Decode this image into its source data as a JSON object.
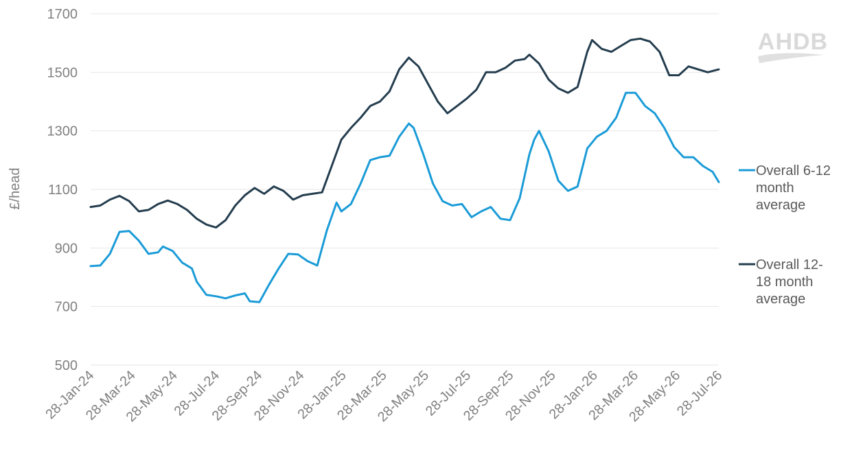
{
  "logo": {
    "text": "AHDB"
  },
  "chart_data": {
    "type": "line",
    "title": "",
    "xlabel": "",
    "ylabel": "£/head",
    "ylim": [
      500,
      1700
    ],
    "yticks": [
      500,
      700,
      900,
      1100,
      1300,
      1500,
      1700
    ],
    "xlim": [
      "2024-01-28",
      "2026-07-28"
    ],
    "x_tick_labels": [
      "28-Jan-24",
      "28-Mar-24",
      "28-May-24",
      "28-Jul-24",
      "28-Sep-24",
      "28-Nov-24",
      "28-Jan-25",
      "28-Mar-25",
      "28-May-25",
      "28-Jul-25",
      "28-Sep-25",
      "28-Nov-25",
      "28-Jan-26",
      "28-Mar-26",
      "28-May-26",
      "28-Jul-26"
    ],
    "x_tick_dates": [
      "2024-01-28",
      "2024-03-28",
      "2024-05-28",
      "2024-07-28",
      "2024-09-28",
      "2024-11-28",
      "2025-01-28",
      "2025-03-28",
      "2025-05-28",
      "2025-07-28",
      "2025-09-28",
      "2025-11-28",
      "2026-01-28",
      "2026-03-28",
      "2026-05-28",
      "2026-07-28"
    ],
    "grid": true,
    "legend": "right",
    "series": [
      {
        "name": "Overall 6-12 month average",
        "color": "#1a9bd7",
        "points": [
          [
            "2024-01-28",
            838
          ],
          [
            "2024-02-11",
            840
          ],
          [
            "2024-02-25",
            880
          ],
          [
            "2024-03-10",
            955
          ],
          [
            "2024-03-24",
            958
          ],
          [
            "2024-04-07",
            925
          ],
          [
            "2024-04-21",
            880
          ],
          [
            "2024-05-05",
            885
          ],
          [
            "2024-05-12",
            905
          ],
          [
            "2024-05-26",
            890
          ],
          [
            "2024-06-09",
            850
          ],
          [
            "2024-06-23",
            830
          ],
          [
            "2024-06-30",
            785
          ],
          [
            "2024-07-14",
            740
          ],
          [
            "2024-07-28",
            735
          ],
          [
            "2024-08-11",
            728
          ],
          [
            "2024-08-25",
            738
          ],
          [
            "2024-09-08",
            745
          ],
          [
            "2024-09-15",
            718
          ],
          [
            "2024-09-29",
            715
          ],
          [
            "2024-10-13",
            775
          ],
          [
            "2024-10-27",
            830
          ],
          [
            "2024-11-10",
            880
          ],
          [
            "2024-11-24",
            878
          ],
          [
            "2024-12-08",
            855
          ],
          [
            "2024-12-22",
            840
          ],
          [
            "2025-01-05",
            960
          ],
          [
            "2025-01-19",
            1055
          ],
          [
            "2025-01-26",
            1025
          ],
          [
            "2025-02-09",
            1050
          ],
          [
            "2025-02-23",
            1120
          ],
          [
            "2025-03-09",
            1200
          ],
          [
            "2025-03-23",
            1210
          ],
          [
            "2025-04-06",
            1215
          ],
          [
            "2025-04-20",
            1280
          ],
          [
            "2025-05-04",
            1325
          ],
          [
            "2025-05-11",
            1310
          ],
          [
            "2025-05-25",
            1220
          ],
          [
            "2025-06-08",
            1120
          ],
          [
            "2025-06-22",
            1060
          ],
          [
            "2025-07-06",
            1045
          ],
          [
            "2025-07-20",
            1050
          ],
          [
            "2025-08-03",
            1005
          ],
          [
            "2025-08-17",
            1025
          ],
          [
            "2025-08-31",
            1040
          ],
          [
            "2025-09-14",
            1000
          ],
          [
            "2025-09-28",
            995
          ],
          [
            "2025-10-12",
            1070
          ],
          [
            "2025-10-26",
            1220
          ],
          [
            "2025-11-02",
            1270
          ],
          [
            "2025-11-09",
            1300
          ],
          [
            "2025-11-23",
            1230
          ],
          [
            "2025-12-07",
            1130
          ],
          [
            "2025-12-21",
            1095
          ],
          [
            "2026-01-04",
            1110
          ],
          [
            "2026-01-18",
            1240
          ],
          [
            "2026-02-01",
            1280
          ],
          [
            "2026-02-15",
            1300
          ],
          [
            "2026-03-01",
            1345
          ],
          [
            "2026-03-15",
            1430
          ],
          [
            "2026-03-29",
            1430
          ],
          [
            "2026-04-12",
            1385
          ],
          [
            "2026-04-26",
            1360
          ],
          [
            "2026-05-10",
            1310
          ],
          [
            "2026-05-24",
            1245
          ],
          [
            "2026-06-07",
            1210
          ],
          [
            "2026-06-21",
            1210
          ],
          [
            "2026-07-05",
            1180
          ],
          [
            "2026-07-19",
            1160
          ],
          [
            "2026-07-28",
            1125
          ]
        ]
      },
      {
        "name": "Overall 12-18 month average",
        "color": "#243d4e",
        "points": [
          [
            "2024-01-28",
            1040
          ],
          [
            "2024-02-11",
            1045
          ],
          [
            "2024-02-25",
            1065
          ],
          [
            "2024-03-10",
            1078
          ],
          [
            "2024-03-24",
            1060
          ],
          [
            "2024-04-07",
            1025
          ],
          [
            "2024-04-21",
            1030
          ],
          [
            "2024-05-05",
            1050
          ],
          [
            "2024-05-19",
            1062
          ],
          [
            "2024-06-02",
            1050
          ],
          [
            "2024-06-16",
            1030
          ],
          [
            "2024-06-30",
            1000
          ],
          [
            "2024-07-14",
            980
          ],
          [
            "2024-07-28",
            970
          ],
          [
            "2024-08-11",
            995
          ],
          [
            "2024-08-25",
            1045
          ],
          [
            "2024-09-08",
            1080
          ],
          [
            "2024-09-22",
            1105
          ],
          [
            "2024-10-06",
            1085
          ],
          [
            "2024-10-20",
            1110
          ],
          [
            "2024-11-03",
            1095
          ],
          [
            "2024-11-17",
            1065
          ],
          [
            "2024-12-01",
            1080
          ],
          [
            "2024-12-15",
            1085
          ],
          [
            "2024-12-29",
            1090
          ],
          [
            "2025-01-12",
            1180
          ],
          [
            "2025-01-26",
            1270
          ],
          [
            "2025-02-09",
            1310
          ],
          [
            "2025-02-23",
            1345
          ],
          [
            "2025-03-09",
            1385
          ],
          [
            "2025-03-23",
            1400
          ],
          [
            "2025-04-06",
            1435
          ],
          [
            "2025-04-20",
            1510
          ],
          [
            "2025-05-04",
            1550
          ],
          [
            "2025-05-18",
            1520
          ],
          [
            "2025-06-01",
            1460
          ],
          [
            "2025-06-15",
            1400
          ],
          [
            "2025-06-29",
            1360
          ],
          [
            "2025-07-13",
            1385
          ],
          [
            "2025-07-27",
            1410
          ],
          [
            "2025-08-10",
            1440
          ],
          [
            "2025-08-24",
            1500
          ],
          [
            "2025-09-07",
            1500
          ],
          [
            "2025-09-21",
            1515
          ],
          [
            "2025-10-05",
            1540
          ],
          [
            "2025-10-19",
            1545
          ],
          [
            "2025-10-26",
            1560
          ],
          [
            "2025-11-09",
            1530
          ],
          [
            "2025-11-23",
            1475
          ],
          [
            "2025-12-07",
            1445
          ],
          [
            "2025-12-21",
            1430
          ],
          [
            "2026-01-04",
            1450
          ],
          [
            "2026-01-18",
            1570
          ],
          [
            "2026-01-25",
            1610
          ],
          [
            "2026-02-08",
            1580
          ],
          [
            "2026-02-22",
            1570
          ],
          [
            "2026-03-08",
            1590
          ],
          [
            "2026-03-22",
            1610
          ],
          [
            "2026-04-05",
            1615
          ],
          [
            "2026-04-19",
            1605
          ],
          [
            "2026-05-03",
            1570
          ],
          [
            "2026-05-17",
            1490
          ],
          [
            "2026-05-31",
            1490
          ],
          [
            "2026-06-14",
            1520
          ],
          [
            "2026-06-28",
            1510
          ],
          [
            "2026-07-12",
            1500
          ],
          [
            "2026-07-28",
            1510
          ]
        ]
      }
    ],
    "legend_lines": [
      [
        "Overall 6-12",
        "month",
        "average"
      ],
      [
        "Overall 12-",
        "18 month",
        "average"
      ]
    ]
  }
}
